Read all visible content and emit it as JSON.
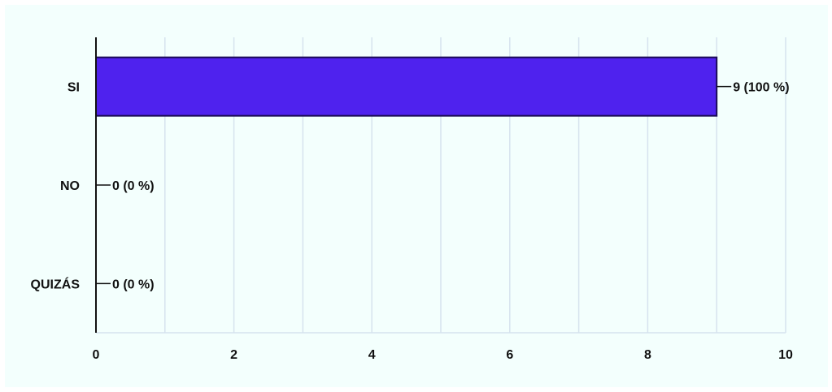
{
  "chart_data": {
    "type": "bar",
    "orientation": "horizontal",
    "categories": [
      "SI",
      "NO",
      "QUIZÁS"
    ],
    "values": [
      9,
      0,
      0
    ],
    "value_labels": [
      "9 (100 %)",
      "0 (0 %)",
      "0 (0 %)"
    ],
    "xlim": [
      0,
      10
    ],
    "x_ticks": [
      "0",
      "2",
      "4",
      "6",
      "8",
      "10"
    ],
    "grid": true,
    "legend": "none",
    "title": "",
    "xlabel": "",
    "ylabel": ""
  },
  "colors": {
    "background": "#f3fffd",
    "bar_fill": "#4f22ee",
    "bar_stroke": "#1a0a55",
    "grid": "#d6e3ee",
    "axis": "#111111"
  }
}
